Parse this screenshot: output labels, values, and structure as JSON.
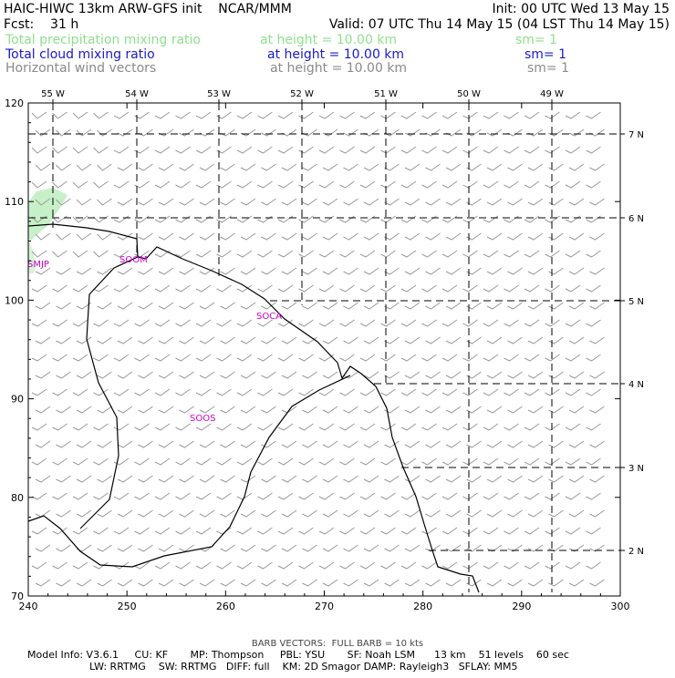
{
  "header": {
    "line1_left": "HAIC-HIWC 13km ARW-GFS init    NCAR/MMM",
    "line1_right": "Init: 00 UTC Wed 13 May 15",
    "line2_left": "Fcst:    31 h",
    "line2_right": "Valid: 07 UTC Thu 14 May 15 (04 LST Thu 14 May 15)"
  },
  "fields": [
    {
      "name": "Total precipitation mixing ratio",
      "height": "at height = 10.00 km",
      "sm": "sm= 1",
      "color": "#8fe08f"
    },
    {
      "name": "Total cloud mixing ratio",
      "height": "at height = 10.00 km",
      "sm": "sm= 1",
      "color": "#1a1acc"
    },
    {
      "name": "Horizontal wind vectors",
      "height": "at height = 10.00 km",
      "sm": "sm= 1",
      "color": "#8a8a8a"
    }
  ],
  "axes": {
    "x_ticks": [
      "240",
      "250",
      "260",
      "270",
      "280",
      "290",
      "300"
    ],
    "y_ticks": [
      "70",
      "80",
      "90",
      "100",
      "110",
      "120"
    ],
    "lon_labels": [
      "55 W",
      "54 W",
      "53 W",
      "52 W",
      "51 W",
      "50 W",
      "49 W"
    ],
    "lat_labels": [
      "7 N",
      "6 N",
      "5 N",
      "4 N",
      "3 N",
      "2 N"
    ]
  },
  "stations": [
    "SMJP",
    "SOCA",
    "SOOS",
    "SOOM"
  ],
  "footer": {
    "barb_note": "BARB VECTORS:  FULL BARB = 10 kts",
    "model_line1": "Model Info: V3.6.1     CU: KF       MP: Thompson     PBL: YSU       SF: Noah LSM      13 km    51 levels    60 sec",
    "model_line2": "LW: RRTMG    SW: RRTMG   DIFF: full    KM: 2D Smagor DAMP: Rayleigh3   SFLAY: MM5"
  },
  "colors": {
    "precip_shading": "#c8f0c8",
    "station_label": "#cc00cc",
    "barbs": "#9a9a9a",
    "coastline": "#000000",
    "grid": "#000000"
  }
}
